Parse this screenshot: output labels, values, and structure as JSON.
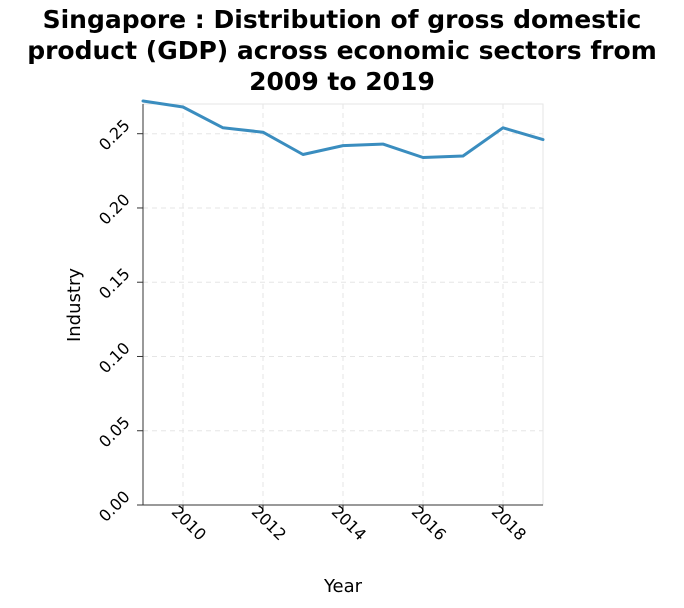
{
  "chart_data": {
    "type": "line",
    "title_lines": [
      "Singapore : Distribution of gross domestic",
      "product (GDP) across economic sectors from",
      "2009 to 2019"
    ],
    "xlabel": "Year",
    "ylabel": "Industry",
    "xlim": [
      2009,
      2019
    ],
    "ylim": [
      0,
      0.27
    ],
    "x_ticks": [
      2010,
      2012,
      2014,
      2016,
      2018
    ],
    "y_ticks": [
      "0.00",
      "0.05",
      "0.10",
      "0.15",
      "0.20",
      "0.25"
    ],
    "grid": true,
    "series": [
      {
        "color": "#3a8dbf",
        "x": [
          2009,
          2010,
          2011,
          2012,
          2013,
          2014,
          2015,
          2016,
          2017,
          2018,
          2019
        ],
        "values": [
          0.272,
          0.268,
          0.254,
          0.251,
          0.236,
          0.242,
          0.243,
          0.234,
          0.235,
          0.254,
          0.246
        ]
      }
    ]
  }
}
